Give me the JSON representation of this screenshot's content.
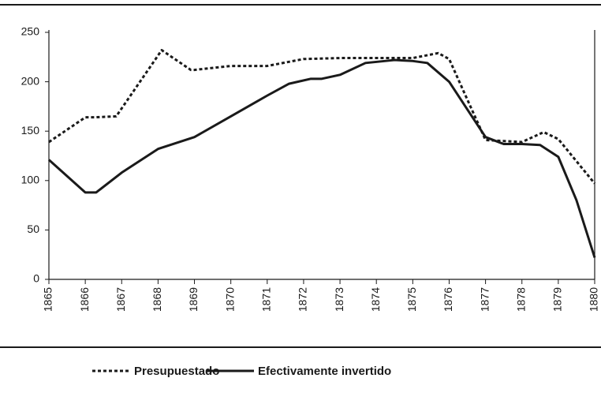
{
  "chart_data": {
    "type": "line",
    "xlim": [
      1865,
      1880
    ],
    "xticks": [
      1865,
      1866,
      1867,
      1868,
      1869,
      1870,
      1871,
      1872,
      1873,
      1874,
      1875,
      1876,
      1877,
      1878,
      1879,
      1880
    ],
    "ylim": [
      0,
      250
    ],
    "yticks": [
      0,
      50,
      100,
      150,
      200,
      250
    ],
    "grid": false,
    "legend": "bottom",
    "series": [
      {
        "name": "Presupuestado",
        "color": "#1a1a1a",
        "dash": "dotted",
        "x": [
          1865,
          1866,
          1866.25,
          1866.85,
          1868.1,
          1868.9,
          1869,
          1870,
          1871,
          1872,
          1873,
          1874,
          1875,
          1875.7,
          1876,
          1877,
          1878,
          1878.6,
          1879,
          1880
        ],
        "values": [
          139,
          164,
          164,
          165,
          232,
          212,
          212,
          216,
          216,
          223,
          224,
          224,
          224,
          229,
          223,
          141,
          139,
          149,
          142,
          97
        ]
      },
      {
        "name": "Efectivamente invertido",
        "color": "#1a1a1a",
        "dash": "solid",
        "x": [
          1865,
          1866,
          1866.3,
          1867,
          1868,
          1869,
          1870,
          1871,
          1871.6,
          1872.2,
          1872.5,
          1873,
          1873.7,
          1874.5,
          1875,
          1875.4,
          1876,
          1876.5,
          1877,
          1877.5,
          1878,
          1878.5,
          1879,
          1879.5,
          1880
        ],
        "values": [
          121,
          88,
          88,
          108,
          132,
          144,
          165,
          186,
          198,
          203,
          203,
          207,
          219,
          222,
          221,
          219,
          200,
          172,
          144,
          137,
          137,
          136,
          124,
          80,
          22
        ]
      }
    ]
  }
}
